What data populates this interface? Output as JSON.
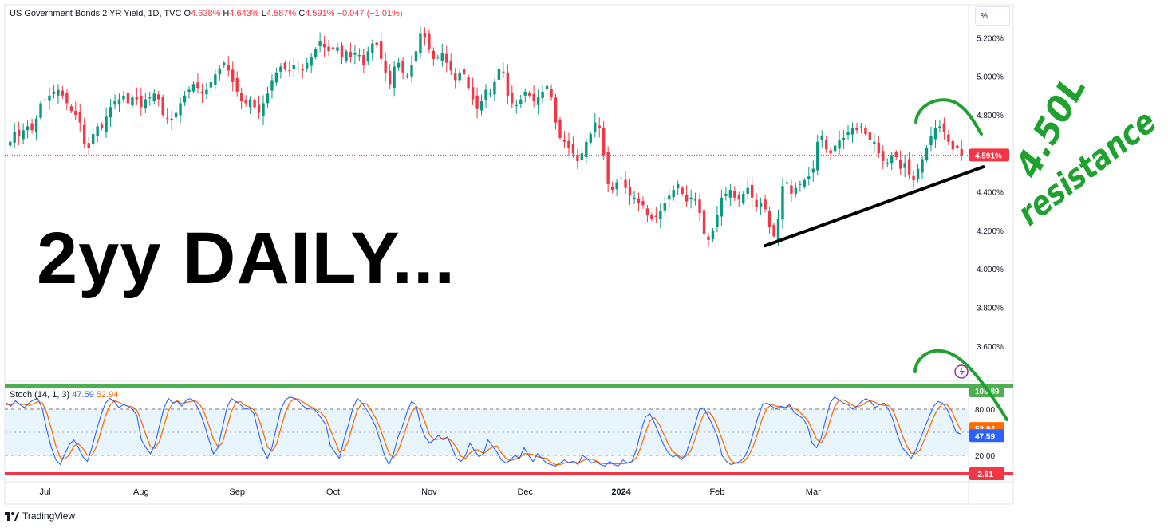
{
  "header": {
    "symbol": "US Government Bonds 2 YR Yield, 1D, TVC",
    "open_label": "O",
    "open": "4.638%",
    "high_label": "H",
    "high": "4.643%",
    "low_label": "L",
    "low": "4.587%",
    "close_label": "C",
    "close": "4.591%",
    "change": "−0.047 (−1.01%)"
  },
  "stoch_header": {
    "name": "Stoch (14, 1, 3)",
    "k_value": "47.59",
    "d_value": "52.94"
  },
  "annotations": {
    "big_text": "2yy DAILY...",
    "handwriting_1": "4.50L",
    "handwriting_2": "resistance"
  },
  "scale_button": "%",
  "footer": {
    "brand": "TradingView"
  },
  "colors": {
    "up": "#089981",
    "down": "#f23645",
    "stoch_k": "#2962ff",
    "stoch_d": "#ff6d00",
    "band_fill": "#e3f2fd",
    "green_line": "#4caf50",
    "red_line": "#f23645",
    "handwriting": "#1fa12f",
    "trendline": "#000000"
  },
  "chart_data": {
    "type": "candlestick",
    "title": "US Government Bonds 2 YR Yield, 1D, TVC",
    "y_axis": {
      "ticks": [
        "5.200%",
        "5.000%",
        "4.800%",
        "4.600%",
        "4.400%",
        "4.200%",
        "4.000%",
        "3.800%",
        "3.600%"
      ],
      "tick_values": [
        5.2,
        5.0,
        4.8,
        4.6,
        4.4,
        4.2,
        4.0,
        3.8,
        3.6
      ],
      "range": [
        3.45,
        5.28
      ],
      "unit": "%"
    },
    "x_axis": {
      "ticks": [
        "Jul",
        "Aug",
        "Sep",
        "Oct",
        "Nov",
        "Dec",
        "2024",
        "Feb",
        "Mar"
      ]
    },
    "last_price_label": "4.591%",
    "last_price": 4.591,
    "close_series": [
      4.66,
      4.71,
      4.69,
      4.72,
      4.74,
      4.72,
      4.78,
      4.86,
      4.88,
      4.9,
      4.92,
      4.93,
      4.9,
      4.86,
      4.82,
      4.8,
      4.76,
      4.65,
      4.63,
      4.7,
      4.74,
      4.73,
      4.79,
      4.84,
      4.87,
      4.88,
      4.9,
      4.86,
      4.89,
      4.88,
      4.84,
      4.88,
      4.89,
      4.91,
      4.88,
      4.8,
      4.78,
      4.77,
      4.81,
      4.86,
      4.9,
      4.93,
      4.96,
      4.94,
      4.91,
      4.93,
      4.97,
      5.01,
      5.04,
      5.07,
      5.03,
      4.97,
      4.92,
      4.87,
      4.86,
      4.88,
      4.84,
      4.81,
      4.86,
      4.91,
      4.98,
      5.02,
      5.05,
      5.04,
      5.03,
      5.06,
      5.04,
      5.03,
      5.07,
      5.1,
      5.14,
      5.18,
      5.15,
      5.13,
      5.14,
      5.15,
      5.1,
      5.13,
      5.1,
      5.12,
      5.11,
      5.06,
      5.13,
      5.17,
      5.16,
      5.09,
      5.02,
      4.96,
      5.05,
      5.07,
      5.02,
      5.0,
      5.06,
      5.13,
      5.22,
      5.2,
      5.14,
      5.09,
      5.1,
      5.12,
      5.07,
      5.03,
      4.98,
      5.02,
      5.01,
      4.94,
      4.88,
      4.83,
      4.87,
      4.93,
      4.91,
      4.97,
      5.04,
      5.02,
      4.9,
      4.86,
      4.85,
      4.88,
      4.92,
      4.9,
      4.87,
      4.89,
      4.92,
      4.95,
      4.89,
      4.76,
      4.68,
      4.66,
      4.63,
      4.6,
      4.56,
      4.6,
      4.66,
      4.7,
      4.76,
      4.73,
      4.59,
      4.44,
      4.41,
      4.45,
      4.47,
      4.42,
      4.38,
      4.37,
      4.34,
      4.33,
      4.28,
      4.26,
      4.27,
      4.3,
      4.34,
      4.38,
      4.41,
      4.44,
      4.39,
      4.35,
      4.37,
      4.36,
      4.29,
      4.18,
      4.15,
      4.2,
      4.28,
      4.37,
      4.39,
      4.41,
      4.37,
      4.36,
      4.39,
      4.42,
      4.37,
      4.32,
      4.34,
      4.31,
      4.22,
      4.17,
      4.26,
      4.43,
      4.45,
      4.39,
      4.42,
      4.44,
      4.46,
      4.48,
      4.52,
      4.66,
      4.69,
      4.62,
      4.6,
      4.64,
      4.67,
      4.68,
      4.71,
      4.73,
      4.72,
      4.74,
      4.7,
      4.67,
      4.66,
      4.6,
      4.56,
      4.55,
      4.59,
      4.58,
      4.52,
      4.55,
      4.49,
      4.46,
      4.52,
      4.57,
      4.63,
      4.69,
      4.73,
      4.74,
      4.71,
      4.66,
      4.62,
      4.63,
      4.591
    ],
    "trendline": {
      "from": [
        "Feb",
        4.12
      ],
      "to": [
        "Mar",
        4.53
      ]
    },
    "stochastic": {
      "name": "Stoch (14, 1, 3)",
      "k_last": 47.59,
      "d_last": 52.94,
      "upper_band": 80,
      "lower_band": 20,
      "max_label": "105.89",
      "min_label": "-2.61",
      "k_label": "47.59",
      "d_label": "52.94",
      "band_label_80": "80.00",
      "band_label_20": "20.00",
      "range": [
        -6,
        108
      ],
      "k_series": [
        88,
        84,
        91,
        86,
        82,
        88,
        92,
        94,
        80,
        52,
        30,
        14,
        8,
        22,
        34,
        40,
        30,
        18,
        12,
        30,
        52,
        72,
        88,
        94,
        90,
        82,
        86,
        84,
        80,
        72,
        40,
        30,
        22,
        34,
        58,
        82,
        94,
        88,
        90,
        84,
        92,
        94,
        88,
        76,
        60,
        40,
        22,
        30,
        56,
        82,
        94,
        90,
        86,
        80,
        82,
        74,
        50,
        28,
        16,
        30,
        56,
        80,
        92,
        96,
        94,
        90,
        84,
        80,
        82,
        76,
        68,
        60,
        32,
        24,
        16,
        40,
        60,
        82,
        94,
        88,
        80,
        70,
        58,
        40,
        20,
        8,
        22,
        44,
        58,
        76,
        90,
        86,
        60,
        44,
        36,
        40,
        46,
        40,
        44,
        30,
        16,
        12,
        20,
        36,
        26,
        18,
        22,
        40,
        32,
        24,
        14,
        10,
        14,
        20,
        16,
        30,
        20,
        12,
        22,
        16,
        10,
        8,
        6,
        10,
        14,
        10,
        12,
        8,
        20,
        16,
        10,
        12,
        8,
        6,
        12,
        8,
        6,
        14,
        10,
        12,
        28,
        52,
        70,
        74,
        62,
        48,
        34,
        24,
        18,
        20,
        14,
        22,
        40,
        60,
        80,
        82,
        70,
        58,
        44,
        20,
        12,
        8,
        10,
        12,
        18,
        30,
        50,
        70,
        86,
        88,
        84,
        80,
        84,
        82,
        86,
        76,
        72,
        68,
        58,
        36,
        30,
        42,
        66,
        88,
        96,
        92,
        88,
        86,
        80,
        84,
        90,
        94,
        90,
        82,
        86,
        88,
        80,
        66,
        46,
        30,
        24,
        16,
        26,
        40,
        56,
        70,
        84,
        90,
        88,
        80,
        66,
        50,
        47.59
      ],
      "d_series": [
        86,
        86,
        87,
        87,
        86,
        85,
        87,
        90,
        88,
        75,
        54,
        32,
        17,
        15,
        21,
        32,
        35,
        29,
        20,
        20,
        31,
        51,
        71,
        85,
        91,
        89,
        86,
        84,
        83,
        79,
        64,
        47,
        31,
        29,
        38,
        58,
        78,
        88,
        91,
        87,
        89,
        90,
        91,
        86,
        75,
        59,
        41,
        31,
        36,
        56,
        77,
        89,
        90,
        85,
        83,
        79,
        69,
        51,
        31,
        25,
        34,
        55,
        76,
        89,
        94,
        93,
        89,
        85,
        82,
        79,
        75,
        68,
        53,
        39,
        24,
        27,
        39,
        61,
        79,
        88,
        87,
        79,
        69,
        56,
        39,
        23,
        17,
        25,
        41,
        59,
        75,
        84,
        79,
        63,
        47,
        40,
        41,
        42,
        43,
        38,
        30,
        19,
        16,
        23,
        27,
        27,
        22,
        27,
        31,
        32,
        23,
        16,
        13,
        15,
        17,
        22,
        22,
        21,
        18,
        17,
        16,
        11,
        8,
        8,
        10,
        11,
        12,
        10,
        13,
        15,
        15,
        13,
        10,
        9,
        9,
        9,
        9,
        9,
        10,
        12,
        17,
        31,
        50,
        65,
        69,
        61,
        48,
        35,
        25,
        21,
        17,
        19,
        25,
        41,
        60,
        74,
        77,
        70,
        57,
        41,
        25,
        13,
        10,
        10,
        13,
        20,
        33,
        50,
        69,
        81,
        86,
        84,
        83,
        82,
        84,
        81,
        78,
        72,
        66,
        54,
        41,
        36,
        46,
        65,
        83,
        92,
        92,
        89,
        85,
        83,
        85,
        89,
        91,
        89,
        86,
        85,
        85,
        78,
        64,
        47,
        33,
        23,
        22,
        27,
        41,
        55,
        70,
        81,
        87,
        86,
        78,
        65,
        52.94
      ]
    }
  }
}
